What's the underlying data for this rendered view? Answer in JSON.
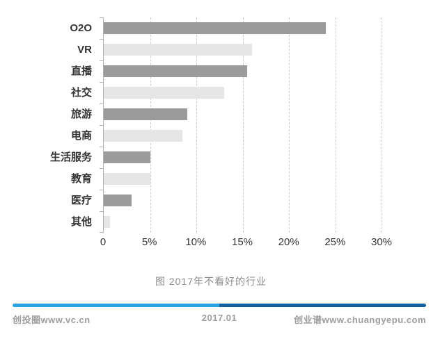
{
  "chart_data": {
    "type": "bar",
    "orientation": "horizontal",
    "title": "图 2017年不看好的行业",
    "categories": [
      "O2O",
      "VR",
      "直播",
      "社交",
      "旅游",
      "电商",
      "生活服务",
      "教育",
      "医疗",
      "其他"
    ],
    "values": [
      24,
      16,
      15.5,
      13,
      9,
      8.5,
      5,
      5,
      3,
      0.7
    ],
    "unit": "%",
    "xlim": [
      0,
      31.5
    ],
    "x_ticks": [
      {
        "value": 0,
        "label": "0"
      },
      {
        "value": 5,
        "label": "5%"
      },
      {
        "value": 10,
        "label": "10%"
      },
      {
        "value": 15,
        "label": "15%"
      },
      {
        "value": 20,
        "label": "20%"
      },
      {
        "value": 25,
        "label": "25%"
      },
      {
        "value": 30,
        "label": "30%"
      }
    ],
    "grid": "vertical-dashed",
    "legend": "none",
    "bar_color_dark": "#9b9b9b",
    "bar_color_light": "#e6e6e6"
  },
  "caption": "图 2017年不看好的行业",
  "footer": {
    "left_text": "创投圈www.vc.cn",
    "center_text": "2017.01",
    "right_text": "创业谱www.chuangyepu.com",
    "divider_left_color": "#2aa2e2",
    "divider_right_color": "#15609f"
  }
}
